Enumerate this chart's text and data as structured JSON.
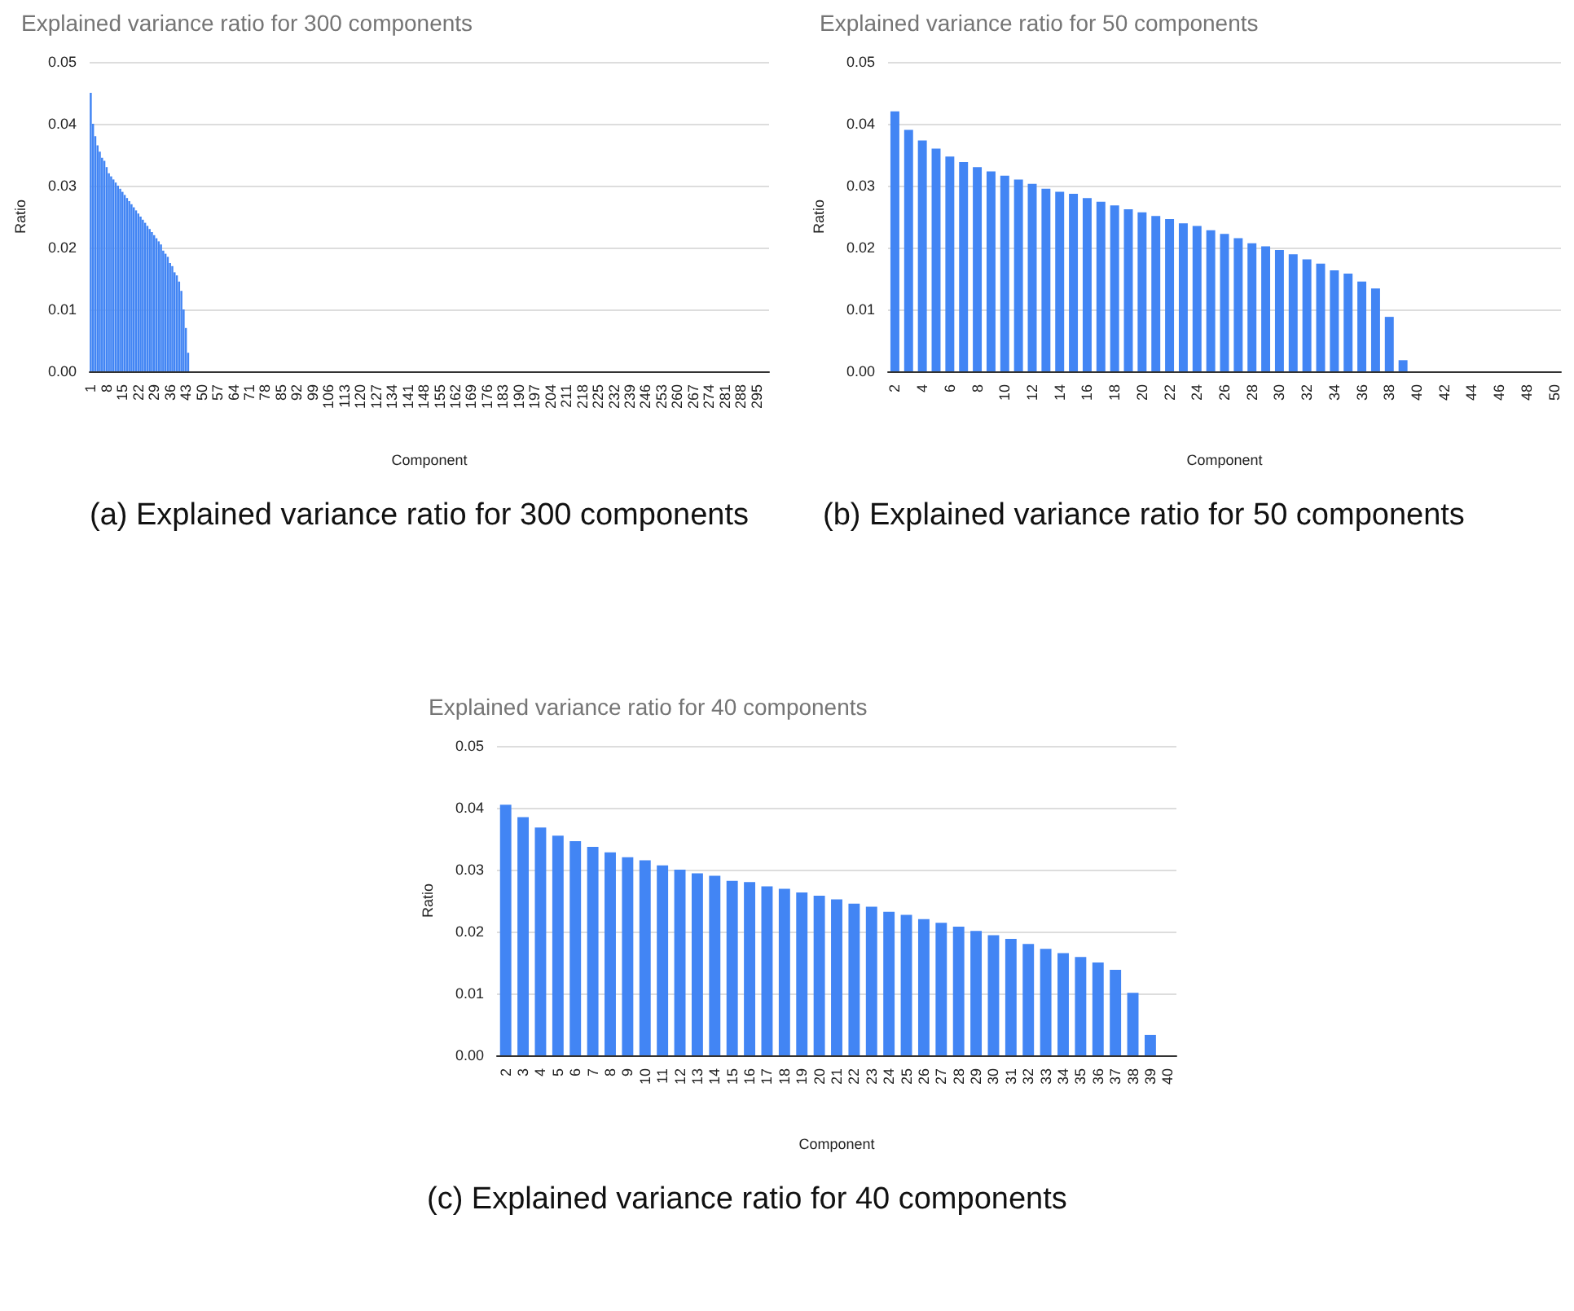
{
  "chart_data": [
    {
      "type": "bar",
      "title": "Explained variance ratio for 300 components",
      "xlabel": "Component",
      "ylabel": "Ratio",
      "color": "#4285f4",
      "ylim": [
        0,
        0.05
      ],
      "yticks": [
        {
          "value": 0,
          "label": "0.00"
        },
        {
          "value": 0.01,
          "label": "0.01"
        },
        {
          "value": 0.02,
          "label": "0.02"
        },
        {
          "value": 0.03,
          "label": "0.03"
        },
        {
          "value": 0.04,
          "label": "0.04"
        },
        {
          "value": 0.05,
          "label": "0.05"
        }
      ],
      "grid": "y",
      "annotations": [
        "(a) Explained variance ratio for 300 components"
      ],
      "categories": [
        "1",
        null,
        null,
        null,
        null,
        null,
        null,
        "8",
        null,
        null,
        null,
        null,
        null,
        null,
        "15",
        null,
        null,
        null,
        null,
        null,
        null,
        "22",
        null,
        null,
        null,
        null,
        null,
        null,
        "29",
        null,
        null,
        null,
        null,
        null,
        null,
        "36",
        null,
        null,
        null,
        null,
        null,
        null,
        "43",
        null,
        null,
        null,
        null,
        null,
        null,
        "50",
        null,
        null,
        null,
        null,
        null,
        null,
        "57",
        null,
        null,
        null,
        null,
        null,
        null,
        "64",
        null,
        null,
        null,
        null,
        null,
        null,
        "71",
        null,
        null,
        null,
        null,
        null,
        null,
        "78",
        null,
        null,
        null,
        null,
        null,
        null,
        "85",
        null,
        null,
        null,
        null,
        null,
        null,
        "92",
        null,
        null,
        null,
        null,
        null,
        null,
        "99",
        null,
        null,
        null,
        null,
        null,
        null,
        "106",
        null,
        null,
        null,
        null,
        null,
        null,
        "113",
        null,
        null,
        null,
        null,
        null,
        null,
        "120",
        null,
        null,
        null,
        null,
        null,
        null,
        "127",
        null,
        null,
        null,
        null,
        null,
        null,
        "134",
        null,
        null,
        null,
        null,
        null,
        null,
        "141",
        null,
        null,
        null,
        null,
        null,
        null,
        "148",
        null,
        null,
        null,
        null,
        null,
        null,
        "155",
        null,
        null,
        null,
        null,
        null,
        null,
        "162",
        null,
        null,
        null,
        null,
        null,
        null,
        "169",
        null,
        null,
        null,
        null,
        null,
        null,
        "176",
        null,
        null,
        null,
        null,
        null,
        null,
        "183",
        null,
        null,
        null,
        null,
        null,
        null,
        "190",
        null,
        null,
        null,
        null,
        null,
        null,
        "197",
        null,
        null,
        null,
        null,
        null,
        null,
        "204",
        null,
        null,
        null,
        null,
        null,
        null,
        "211",
        null,
        null,
        null,
        null,
        null,
        null,
        "218",
        null,
        null,
        null,
        null,
        null,
        null,
        "225",
        null,
        null,
        null,
        null,
        null,
        null,
        "232",
        null,
        null,
        null,
        null,
        null,
        null,
        "239",
        null,
        null,
        null,
        null,
        null,
        null,
        "246",
        null,
        null,
        null,
        null,
        null,
        null,
        "253",
        null,
        null,
        null,
        null,
        null,
        null,
        "260",
        null,
        null,
        null,
        null,
        null,
        null,
        "267",
        null,
        null,
        null,
        null,
        null,
        null,
        "274",
        null,
        null,
        null,
        null,
        null,
        null,
        "281",
        null,
        null,
        null,
        null,
        null,
        null,
        "288",
        null,
        null,
        null,
        null,
        null,
        null,
        "295",
        null,
        null,
        null,
        null,
        null
      ],
      "values": [
        0.045,
        0.04,
        0.038,
        0.0365,
        0.0355,
        0.0345,
        0.034,
        0.033,
        0.032,
        0.0315,
        0.031,
        0.0305,
        0.03,
        0.0295,
        0.029,
        0.0285,
        0.028,
        0.0275,
        0.027,
        0.0265,
        0.026,
        0.0255,
        0.025,
        0.0245,
        0.024,
        0.0235,
        0.023,
        0.0225,
        0.022,
        0.0215,
        0.021,
        0.0205,
        0.0195,
        0.019,
        0.0185,
        0.0175,
        0.017,
        0.016,
        0.0155,
        0.0145,
        0.013,
        0.01,
        0.007,
        0.003,
        0,
        0,
        0,
        0,
        0,
        0,
        0,
        0,
        0,
        0,
        0,
        0,
        0,
        0,
        0,
        0,
        0,
        0,
        0,
        0,
        0,
        0,
        0,
        0,
        0,
        0,
        0,
        0,
        0,
        0,
        0,
        0,
        0,
        0,
        0,
        0,
        0,
        0,
        0,
        0,
        0,
        0,
        0,
        0,
        0,
        0,
        0,
        0,
        0,
        0,
        0,
        0,
        0,
        0,
        0,
        0,
        0,
        0,
        0,
        0,
        0,
        0,
        0,
        0,
        0,
        0,
        0,
        0,
        0,
        0,
        0,
        0,
        0,
        0,
        0,
        0,
        0,
        0,
        0,
        0,
        0,
        0,
        0,
        0,
        0,
        0,
        0,
        0,
        0,
        0,
        0,
        0,
        0,
        0,
        0,
        0,
        0,
        0,
        0,
        0,
        0,
        0,
        0,
        0,
        0,
        0,
        0,
        0,
        0,
        0,
        0,
        0,
        0,
        0,
        0,
        0,
        0,
        0,
        0,
        0,
        0,
        0,
        0,
        0,
        0,
        0,
        0,
        0,
        0,
        0,
        0,
        0,
        0,
        0,
        0,
        0,
        0,
        0,
        0,
        0,
        0,
        0,
        0,
        0,
        0,
        0,
        0,
        0,
        0,
        0,
        0,
        0,
        0,
        0,
        0,
        0,
        0,
        0,
        0,
        0,
        0,
        0,
        0,
        0,
        0,
        0,
        0,
        0,
        0,
        0,
        0,
        0,
        0,
        0,
        0,
        0,
        0,
        0,
        0,
        0,
        0,
        0,
        0,
        0,
        0,
        0,
        0,
        0,
        0,
        0,
        0,
        0,
        0,
        0,
        0,
        0,
        0,
        0,
        0,
        0,
        0,
        0,
        0,
        0,
        0,
        0,
        0,
        0,
        0,
        0,
        0,
        0,
        0,
        0,
        0,
        0,
        0,
        0,
        0,
        0,
        0,
        0,
        0,
        0,
        0,
        0,
        0,
        0,
        0,
        0,
        0,
        0,
        0,
        0,
        0,
        0,
        0,
        0,
        0,
        0,
        0,
        0,
        0,
        0,
        0,
        0,
        0,
        0,
        0,
        0,
        0,
        0,
        0,
        0,
        0,
        0
      ]
    },
    {
      "type": "bar",
      "title": "Explained variance ratio for 50 components",
      "xlabel": "Component",
      "ylabel": "Ratio",
      "color": "#4285f4",
      "ylim": [
        0,
        0.05
      ],
      "yticks": [
        {
          "value": 0,
          "label": "0.00"
        },
        {
          "value": 0.01,
          "label": "0.01"
        },
        {
          "value": 0.02,
          "label": "0.02"
        },
        {
          "value": 0.03,
          "label": "0.03"
        },
        {
          "value": 0.04,
          "label": "0.04"
        },
        {
          "value": 0.05,
          "label": "0.05"
        }
      ],
      "grid": "y",
      "annotations": [
        "(b) Explained variance ratio for 50 components"
      ],
      "categories": [
        "2",
        null,
        "4",
        null,
        "6",
        null,
        "8",
        null,
        "10",
        null,
        "12",
        null,
        "14",
        null,
        "16",
        null,
        "18",
        null,
        "20",
        null,
        "22",
        null,
        "24",
        null,
        "26",
        null,
        "28",
        null,
        "30",
        null,
        "32",
        null,
        "34",
        null,
        "36",
        null,
        "38",
        null,
        "40",
        null,
        "42",
        null,
        "44",
        null,
        "46",
        null,
        "48",
        null,
        "50"
      ],
      "values": [
        0.042,
        0.039,
        0.0373,
        0.036,
        0.0347,
        0.0338,
        0.033,
        0.0323,
        0.0316,
        0.031,
        0.0303,
        0.0295,
        0.029,
        0.0287,
        0.028,
        0.0274,
        0.0268,
        0.0262,
        0.0257,
        0.0251,
        0.0246,
        0.0239,
        0.0235,
        0.0228,
        0.0222,
        0.0215,
        0.0207,
        0.0202,
        0.0196,
        0.0189,
        0.0181,
        0.0174,
        0.0163,
        0.0158,
        0.0145,
        0.0134,
        0.0088,
        0.0018,
        0,
        0,
        0,
        0,
        0,
        0,
        0,
        0,
        0,
        0,
        0
      ]
    },
    {
      "type": "bar",
      "title": "Explained variance ratio for 40 components",
      "xlabel": "Component",
      "ylabel": "Ratio",
      "color": "#4285f4",
      "ylim": [
        0,
        0.05
      ],
      "yticks": [
        {
          "value": 0,
          "label": "0.00"
        },
        {
          "value": 0.01,
          "label": "0.01"
        },
        {
          "value": 0.02,
          "label": "0.02"
        },
        {
          "value": 0.03,
          "label": "0.03"
        },
        {
          "value": 0.04,
          "label": "0.04"
        },
        {
          "value": 0.05,
          "label": "0.05"
        }
      ],
      "grid": "y",
      "annotations": [
        "(c) Explained variance ratio for 40 components"
      ],
      "categories": [
        "2",
        "3",
        "4",
        "5",
        "6",
        "7",
        "8",
        "9",
        "10",
        "11",
        "12",
        "13",
        "14",
        "15",
        "16",
        "17",
        "18",
        "19",
        "20",
        "21",
        "22",
        "23",
        "24",
        "25",
        "26",
        "27",
        "28",
        "29",
        "30",
        "31",
        "32",
        "33",
        "34",
        "35",
        "36",
        "37",
        "38",
        "39",
        "40"
      ],
      "values": [
        0.0405,
        0.0385,
        0.0368,
        0.0355,
        0.0346,
        0.0337,
        0.0328,
        0.032,
        0.0315,
        0.0307,
        0.03,
        0.0294,
        0.029,
        0.0282,
        0.028,
        0.0273,
        0.0269,
        0.0263,
        0.0258,
        0.0252,
        0.0245,
        0.024,
        0.0232,
        0.0227,
        0.022,
        0.0214,
        0.0208,
        0.0201,
        0.0194,
        0.0188,
        0.018,
        0.0172,
        0.0165,
        0.0159,
        0.015,
        0.0138,
        0.0101,
        0.0033,
        0
      ]
    }
  ]
}
